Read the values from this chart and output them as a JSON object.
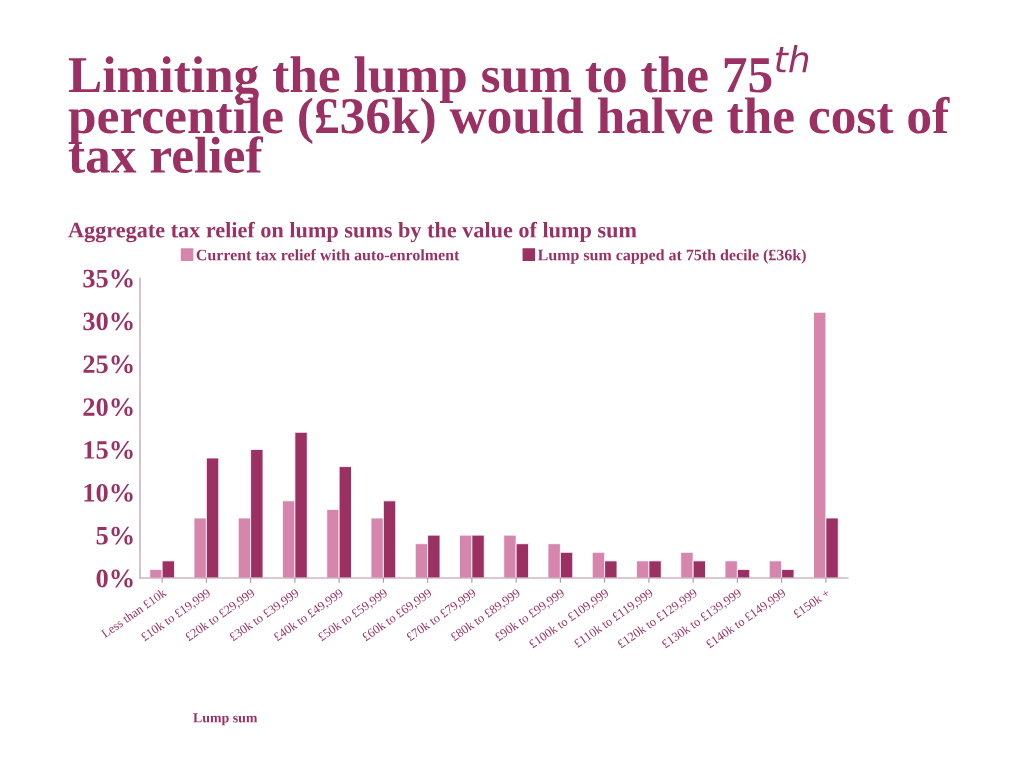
{
  "chart_data": {
    "type": "bar",
    "title": "Limiting the lump sum to the 75$^{th}$ percentile (£36k) would halve the cost of tax relief",
    "subtitle": "Aggregate tax relief on lump sums by the value of lump sum",
    "xlabel": "Lump sum",
    "categories": [
      "Less than £10k",
      "£10k to £19,999",
      "£20k to £29,999",
      "£30k to £39,999",
      "£40k to £49,999",
      "£50k to £59,999",
      "£60k to £69,999",
      "£70k to £79,999",
      "£80k to £89,999",
      "£90k to £99,999",
      "£100k to £109,999",
      "£110k to £119,999",
      "£120k to £129,999",
      "£130k to £139,999",
      "£140k to £149,999",
      "£150k +"
    ],
    "series": [
      {
        "name": "Current tax relief with auto-enrolment",
        "color": "#d685ad",
        "values": [
          1,
          7,
          7,
          9,
          8,
          7,
          4,
          5,
          5,
          4,
          3,
          2,
          3,
          2,
          2,
          31
        ]
      },
      {
        "name": "Lump sum capped at 75th decile (£36k)",
        "color": "#9b3163",
        "values": [
          2,
          14,
          15,
          17,
          13,
          9,
          5,
          5,
          4,
          3,
          2,
          2,
          2,
          1,
          1,
          7
        ]
      }
    ],
    "ylim": [
      0,
      35
    ],
    "yticks": [
      {
        "value": 0,
        "label": "0%"
      },
      {
        "value": 5,
        "label": "5%"
      },
      {
        "value": 10,
        "label": "10%"
      },
      {
        "value": 15,
        "label": "15%"
      },
      {
        "value": 20,
        "label": "20%"
      },
      {
        "value": 25,
        "label": "25%"
      },
      {
        "value": 30,
        "label": "30%"
      },
      {
        "value": 35,
        "label": "35%"
      }
    ],
    "grid": false,
    "legend": "top"
  }
}
